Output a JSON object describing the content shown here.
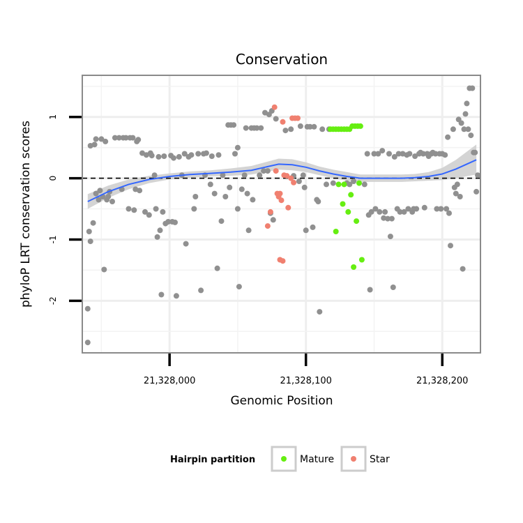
{
  "chart_data": {
    "type": "scatter",
    "title": "Conservation",
    "xlabel": "Genomic Position",
    "ylabel": "phyloP LRT conservation scores",
    "xlim": [
      21327936,
      21328228
    ],
    "ylim": [
      -2.85,
      1.68
    ],
    "x_ticks": [
      {
        "value": 21328000,
        "label": "21,328,000"
      },
      {
        "value": 21328100,
        "label": "21,328,100"
      },
      {
        "value": 21328200,
        "label": "21,328,200"
      }
    ],
    "y_ticks": [
      {
        "value": -2,
        "label": "-2"
      },
      {
        "value": -1,
        "label": "-1"
      },
      {
        "value": 0,
        "label": "0"
      },
      {
        "value": 1,
        "label": "1"
      }
    ],
    "grid": true,
    "reference_line": {
      "y": 0,
      "style": "dashed"
    },
    "legend": {
      "title": "Hairpin partition",
      "placement": "bottom",
      "entries": [
        {
          "name": "Mature",
          "color": "#66ee11"
        },
        {
          "name": "Star",
          "color": "#f08070"
        }
      ]
    },
    "colors": {
      "other": "#909090",
      "mature": "#66ee11",
      "star": "#f08070",
      "smooth": "#3366ff",
      "band": "#cccccc"
    },
    "smooth": {
      "x": [
        21327940,
        21327955,
        21327970,
        21327985,
        21328000,
        21328015,
        21328030,
        21328045,
        21328060,
        21328070,
        21328080,
        21328090,
        21328100,
        21328110,
        21328120,
        21328130,
        21328140,
        21328150,
        21328160,
        21328170,
        21328180,
        21328190,
        21328200,
        21328210,
        21328225
      ],
      "y": [
        -0.38,
        -0.22,
        -0.1,
        -0.02,
        0.03,
        0.06,
        0.08,
        0.1,
        0.13,
        0.18,
        0.23,
        0.22,
        0.18,
        0.12,
        0.07,
        0.03,
        0.0,
        0.0,
        0.0,
        0.0,
        0.01,
        0.03,
        0.07,
        0.15,
        0.3
      ],
      "lower": [
        -0.5,
        -0.32,
        -0.18,
        -0.08,
        -0.02,
        0.01,
        0.03,
        0.04,
        0.06,
        0.1,
        0.14,
        0.13,
        0.1,
        0.05,
        0.0,
        -0.04,
        -0.06,
        -0.06,
        -0.06,
        -0.06,
        -0.05,
        -0.04,
        -0.03,
        0.0,
        0.06
      ],
      "upper": [
        -0.26,
        -0.12,
        -0.02,
        0.04,
        0.08,
        0.11,
        0.13,
        0.16,
        0.2,
        0.26,
        0.32,
        0.31,
        0.26,
        0.19,
        0.14,
        0.1,
        0.06,
        0.06,
        0.06,
        0.06,
        0.07,
        0.1,
        0.17,
        0.3,
        0.55
      ]
    },
    "series": [
      {
        "partition": "other",
        "points": [
          [
            21327940,
            -2.68
          ],
          [
            21327940,
            -2.13
          ],
          [
            21327941,
            -0.87
          ],
          [
            21327942,
            -1.03
          ],
          [
            21327942,
            0.53
          ],
          [
            21327944,
            -0.73
          ],
          [
            21327945,
            0.55
          ],
          [
            21327946,
            -0.25
          ],
          [
            21327946,
            0.64
          ],
          [
            21327948,
            -0.35
          ],
          [
            21327949,
            -0.2
          ],
          [
            21327950,
            0.64
          ],
          [
            21327951,
            -0.3
          ],
          [
            21327952,
            -1.49
          ],
          [
            21327953,
            0.6
          ],
          [
            21327954,
            -0.35
          ],
          [
            21327955,
            -0.3
          ],
          [
            21327956,
            -0.22
          ],
          [
            21327958,
            -0.38
          ],
          [
            21327960,
            0.66
          ],
          [
            21327963,
            0.66
          ],
          [
            21327965,
            -0.18
          ],
          [
            21327966,
            0.66
          ],
          [
            21327968,
            0.66
          ],
          [
            21327970,
            -0.5
          ],
          [
            21327971,
            0.66
          ],
          [
            21327973,
            0.66
          ],
          [
            21327974,
            -0.52
          ],
          [
            21327975,
            -0.18
          ],
          [
            21327976,
            0.6
          ],
          [
            21327977,
            0.63
          ],
          [
            21327978,
            -0.2
          ],
          [
            21327980,
            0.41
          ],
          [
            21327982,
            -0.55
          ],
          [
            21327983,
            0.38
          ],
          [
            21327985,
            -0.6
          ],
          [
            21327986,
            0.41
          ],
          [
            21327987,
            0.37
          ],
          [
            21327989,
            0.05
          ],
          [
            21327990,
            -0.5
          ],
          [
            21327991,
            -0.96
          ],
          [
            21327992,
            0.35
          ],
          [
            21327993,
            -0.85
          ],
          [
            21327994,
            -1.9
          ],
          [
            21327995,
            -0.55
          ],
          [
            21327996,
            0.36
          ],
          [
            21327997,
            -0.74
          ],
          [
            21327999,
            -0.71
          ],
          [
            21328001,
            0.37
          ],
          [
            21328002,
            -0.71
          ],
          [
            21328003,
            0.33
          ],
          [
            21328004,
            -0.72
          ],
          [
            21328005,
            -1.92
          ],
          [
            21328007,
            0.35
          ],
          [
            21328009,
            0.05
          ],
          [
            21328011,
            0.4
          ],
          [
            21328012,
            -1.07
          ],
          [
            21328014,
            0.35
          ],
          [
            21328016,
            0.38
          ],
          [
            21328018,
            -0.5
          ],
          [
            21328019,
            -0.3
          ],
          [
            21328021,
            0.4
          ],
          [
            21328023,
            -1.83
          ],
          [
            21328025,
            0.4
          ],
          [
            21328026,
            0.05
          ],
          [
            21328027,
            0.41
          ],
          [
            21328030,
            -0.1
          ],
          [
            21328031,
            0.36
          ],
          [
            21328033,
            -0.25
          ],
          [
            21328035,
            -1.47
          ],
          [
            21328036,
            0.38
          ],
          [
            21328038,
            -0.7
          ],
          [
            21328039,
            0.05
          ],
          [
            21328041,
            -0.3
          ],
          [
            21328043,
            0.87
          ],
          [
            21328044,
            -0.15
          ],
          [
            21328045,
            0.87
          ],
          [
            21328047,
            0.87
          ],
          [
            21328048,
            0.4
          ],
          [
            21328050,
            0.5
          ],
          [
            21328050,
            -0.5
          ],
          [
            21328051,
            -1.77
          ],
          [
            21328053,
            -0.18
          ],
          [
            21328055,
            0.05
          ],
          [
            21328056,
            0.82
          ],
          [
            21328057,
            -0.25
          ],
          [
            21328058,
            -0.85
          ],
          [
            21328060,
            0.82
          ],
          [
            21328061,
            -0.35
          ],
          [
            21328062,
            0.82
          ],
          [
            21328064,
            0.82
          ],
          [
            21328066,
            0.05
          ],
          [
            21328067,
            0.82
          ],
          [
            21328069,
            0.12
          ],
          [
            21328070,
            1.07
          ],
          [
            21328072,
            0.12
          ],
          [
            21328073,
            1.04
          ],
          [
            21328074,
            -0.57
          ],
          [
            21328075,
            1.1
          ],
          [
            21328076,
            -0.68
          ],
          [
            21328078,
            0.97
          ],
          [
            21328085,
            0.78
          ],
          [
            21328089,
            0.8
          ],
          [
            21328091,
            0.04
          ],
          [
            21328095,
            -0.05
          ],
          [
            21328096,
            0.85
          ],
          [
            21328098,
            0.05
          ],
          [
            21328099,
            -0.15
          ],
          [
            21328100,
            -0.85
          ],
          [
            21328101,
            0.84
          ],
          [
            21328103,
            0.84
          ],
          [
            21328105,
            -0.8
          ],
          [
            21328106,
            0.84
          ],
          [
            21328108,
            -0.35
          ],
          [
            21328109,
            -0.38
          ],
          [
            21328110,
            -2.18
          ],
          [
            21328112,
            0.8
          ],
          [
            21328115,
            -0.1
          ],
          [
            21328117,
            0.8
          ],
          [
            21328120,
            -0.08
          ],
          [
            21328130,
            -0.08
          ],
          [
            21328132,
            -0.1
          ],
          [
            21328135,
            -0.05
          ],
          [
            21328143,
            -0.1
          ],
          [
            21328145,
            0.4
          ],
          [
            21328146,
            -0.6
          ],
          [
            21328147,
            -1.82
          ],
          [
            21328148,
            -0.55
          ],
          [
            21328150,
            0.4
          ],
          [
            21328151,
            -0.5
          ],
          [
            21328153,
            0.4
          ],
          [
            21328154,
            -0.55
          ],
          [
            21328156,
            0.45
          ],
          [
            21328157,
            -0.65
          ],
          [
            21328158,
            -0.55
          ],
          [
            21328160,
            -0.66
          ],
          [
            21328161,
            0.4
          ],
          [
            21328162,
            -0.95
          ],
          [
            21328163,
            -0.66
          ],
          [
            21328164,
            -1.78
          ],
          [
            21328165,
            0.35
          ],
          [
            21328167,
            -0.5
          ],
          [
            21328168,
            0.4
          ],
          [
            21328169,
            -0.55
          ],
          [
            21328171,
            0.4
          ],
          [
            21328172,
            -0.55
          ],
          [
            21328174,
            0.38
          ],
          [
            21328175,
            -0.5
          ],
          [
            21328176,
            0.4
          ],
          [
            21328178,
            -0.55
          ],
          [
            21328179,
            -0.5
          ],
          [
            21328180,
            0.36
          ],
          [
            21328181,
            -0.5
          ],
          [
            21328183,
            0.4
          ],
          [
            21328184,
            0.42
          ],
          [
            21328186,
            0.4
          ],
          [
            21328187,
            -0.48
          ],
          [
            21328189,
            0.4
          ],
          [
            21328190,
            0.36
          ],
          [
            21328192,
            0.4
          ],
          [
            21328193,
            0.42
          ],
          [
            21328195,
            0.4
          ],
          [
            21328196,
            -0.5
          ],
          [
            21328198,
            0.4
          ],
          [
            21328199,
            -0.5
          ],
          [
            21328200,
            0.4
          ],
          [
            21328202,
            0.38
          ],
          [
            21328203,
            -0.5
          ],
          [
            21328204,
            0.67
          ],
          [
            21328205,
            -0.57
          ],
          [
            21328206,
            -1.1
          ],
          [
            21328208,
            0.8
          ],
          [
            21328209,
            -0.15
          ],
          [
            21328210,
            -0.25
          ],
          [
            21328211,
            -0.1
          ],
          [
            21328212,
            0.96
          ],
          [
            21328213,
            -0.3
          ],
          [
            21328214,
            0.9
          ],
          [
            21328215,
            -1.48
          ],
          [
            21328216,
            0.8
          ],
          [
            21328217,
            1.05
          ],
          [
            21328218,
            1.22
          ],
          [
            21328219,
            0.8
          ],
          [
            21328220,
            1.47
          ],
          [
            21328221,
            0.7
          ],
          [
            21328222,
            1.47
          ],
          [
            21328223,
            0.42
          ],
          [
            21328224,
            0.42
          ],
          [
            21328225,
            -0.22
          ],
          [
            21328226,
            0.05
          ]
        ]
      },
      {
        "partition": "Star",
        "points": [
          [
            21328077,
            1.16
          ],
          [
            21328078,
            0.12
          ],
          [
            21328079,
            -0.25
          ],
          [
            21328080,
            -0.3
          ],
          [
            21328081,
            -0.25
          ],
          [
            21328081,
            -1.33
          ],
          [
            21328082,
            -0.36
          ],
          [
            21328083,
            0.92
          ],
          [
            21328083,
            -1.35
          ],
          [
            21328084,
            0.05
          ],
          [
            21328086,
            0.04
          ],
          [
            21328087,
            -0.48
          ],
          [
            21328089,
            0.0
          ],
          [
            21328090,
            0.98
          ],
          [
            21328091,
            -0.07
          ],
          [
            21328092,
            0.98
          ],
          [
            21328094,
            0.98
          ],
          [
            21328074,
            -0.55
          ],
          [
            21328072,
            -0.78
          ]
        ]
      },
      {
        "partition": "Mature",
        "points": [
          [
            21328118,
            0.8
          ],
          [
            21328120,
            0.8
          ],
          [
            21328122,
            0.8
          ],
          [
            21328124,
            0.8
          ],
          [
            21328126,
            0.8
          ],
          [
            21328128,
            0.8
          ],
          [
            21328130,
            0.8
          ],
          [
            21328132,
            0.8
          ],
          [
            21328134,
            0.85
          ],
          [
            21328136,
            0.85
          ],
          [
            21328138,
            0.85
          ],
          [
            21328140,
            0.85
          ],
          [
            21328122,
            -0.87
          ],
          [
            21328124,
            -0.1
          ],
          [
            21328127,
            -0.42
          ],
          [
            21328128,
            -0.1
          ],
          [
            21328131,
            -0.55
          ],
          [
            21328133,
            -0.27
          ],
          [
            21328135,
            -1.45
          ],
          [
            21328137,
            -0.7
          ],
          [
            21328141,
            -1.33
          ],
          [
            21328139,
            -0.08
          ]
        ]
      }
    ]
  }
}
